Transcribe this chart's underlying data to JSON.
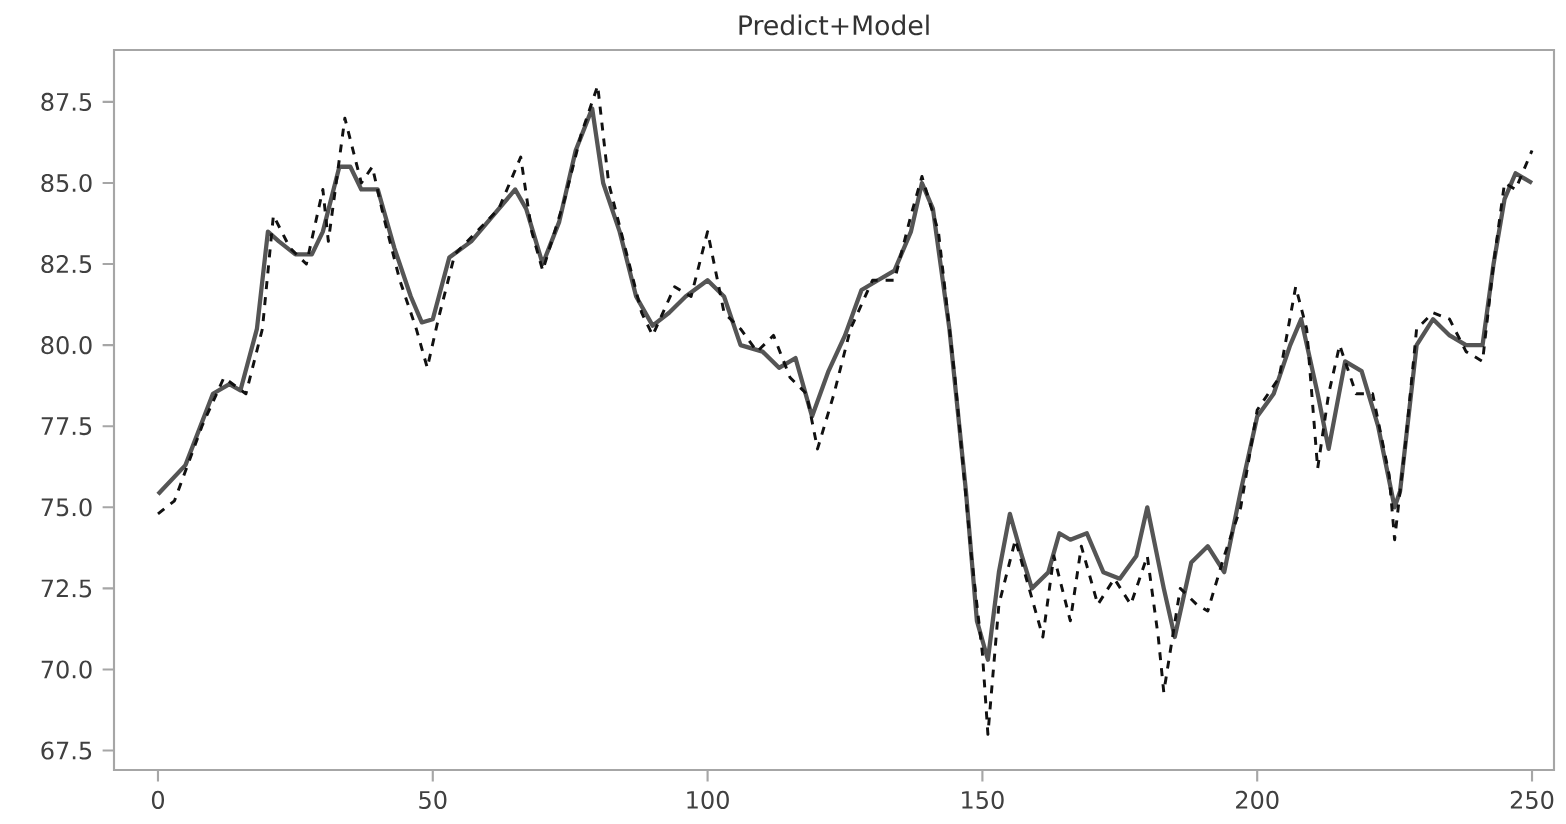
{
  "chart_data": {
    "type": "line",
    "title": "Predict+Model",
    "xlim": [
      -8,
      254
    ],
    "ylim": [
      66.9,
      89.1
    ],
    "xticks": [
      0,
      50,
      100,
      150,
      200,
      250
    ],
    "yticks": [
      67.5,
      {
        "value": 70,
        "label": "70.0"
      },
      72.5,
      {
        "value": 75,
        "label": "75.0"
      },
      77.5,
      {
        "value": 80,
        "label": "80.0"
      },
      82.5,
      {
        "value": 85,
        "label": "85.0"
      },
      87.5
    ],
    "series": [
      {
        "color": "#555555",
        "line_style": "solid",
        "x": [
          0,
          5,
          10,
          13,
          15,
          18,
          20,
          22,
          25,
          28,
          30,
          33,
          35,
          37,
          40,
          43,
          46,
          48,
          50,
          53,
          57,
          60,
          65,
          67,
          70,
          73,
          76,
          79,
          81,
          84,
          87,
          90,
          93,
          96,
          100,
          103,
          106,
          110,
          113,
          116,
          119,
          122,
          125,
          128,
          131,
          134,
          137,
          139,
          141,
          144,
          147,
          149,
          151,
          153,
          155,
          157,
          159,
          162,
          164,
          166,
          169,
          172,
          175,
          178,
          180,
          183,
          185,
          188,
          191,
          194,
          197,
          200,
          203,
          206,
          208,
          211,
          213,
          216,
          219,
          222,
          225,
          226,
          229,
          232,
          235,
          238,
          241,
          243,
          245,
          247,
          250
        ],
        "values": [
          75.4,
          76.3,
          78.5,
          78.8,
          78.6,
          80.5,
          83.5,
          83.2,
          82.8,
          82.8,
          83.5,
          85.5,
          85.5,
          84.8,
          84.8,
          83.0,
          81.5,
          80.7,
          80.8,
          82.7,
          83.2,
          83.8,
          84.8,
          84.2,
          82.5,
          83.8,
          86.0,
          87.3,
          85.0,
          83.5,
          81.5,
          80.6,
          81.0,
          81.5,
          82.0,
          81.5,
          80.0,
          79.8,
          79.3,
          79.6,
          77.8,
          79.2,
          80.3,
          81.7,
          82.0,
          82.3,
          83.5,
          85.0,
          84.2,
          80.5,
          75.5,
          71.5,
          70.3,
          73.0,
          74.8,
          73.6,
          72.5,
          73.0,
          74.2,
          74.0,
          74.2,
          73.0,
          72.8,
          73.5,
          75.0,
          72.5,
          71.0,
          73.3,
          73.8,
          73.0,
          75.5,
          77.8,
          78.5,
          80.0,
          80.8,
          78.5,
          76.8,
          79.5,
          79.2,
          77.5,
          75.0,
          75.5,
          80.0,
          80.8,
          80.3,
          80.0,
          80.0,
          82.5,
          84.5,
          85.3,
          85.0
        ]
      },
      {
        "color": "#111111",
        "line_style": "dashed",
        "x": [
          0,
          3,
          8,
          12,
          16,
          19,
          21,
          24,
          27,
          30,
          31,
          34,
          37,
          39,
          41,
          44,
          47,
          49,
          51,
          54,
          58,
          62,
          66,
          68,
          70,
          74,
          77,
          80,
          82,
          85,
          88,
          90,
          94,
          97,
          100,
          103,
          106,
          109,
          112,
          115,
          118,
          120,
          123,
          126,
          130,
          134,
          137,
          139,
          142,
          145,
          148,
          150,
          151,
          153,
          156,
          159,
          161,
          163,
          166,
          168,
          171,
          174,
          177,
          180,
          182,
          183,
          186,
          189,
          191,
          194,
          197,
          200,
          204,
          207,
          209,
          211,
          213,
          215,
          218,
          221,
          224,
          225,
          227,
          229,
          232,
          235,
          238,
          241,
          243,
          245,
          247,
          250
        ],
        "values": [
          74.8,
          75.2,
          77.5,
          79.0,
          78.5,
          80.5,
          84.0,
          83.0,
          82.5,
          84.8,
          83.2,
          87.0,
          85.0,
          85.5,
          84.0,
          82.0,
          80.5,
          79.3,
          80.8,
          82.8,
          83.5,
          84.2,
          85.8,
          83.5,
          82.3,
          84.5,
          86.5,
          88.0,
          85.0,
          83.0,
          81.0,
          80.3,
          81.8,
          81.5,
          83.5,
          81.0,
          80.5,
          79.8,
          80.3,
          79.0,
          78.5,
          76.8,
          78.5,
          80.5,
          82.0,
          82.0,
          84.0,
          85.2,
          83.5,
          79.0,
          73.5,
          70.5,
          68.0,
          72.0,
          74.0,
          72.2,
          71.0,
          73.5,
          71.5,
          73.8,
          72.0,
          72.8,
          72.0,
          73.5,
          71.0,
          69.3,
          72.5,
          72.0,
          71.8,
          73.5,
          75.0,
          78.0,
          79.0,
          81.8,
          80.5,
          76.2,
          78.5,
          80.0,
          78.5,
          78.5,
          76.0,
          74.0,
          77.0,
          80.5,
          81.0,
          80.8,
          79.8,
          79.5,
          82.5,
          85.0,
          84.8,
          86.0
        ]
      }
    ]
  }
}
